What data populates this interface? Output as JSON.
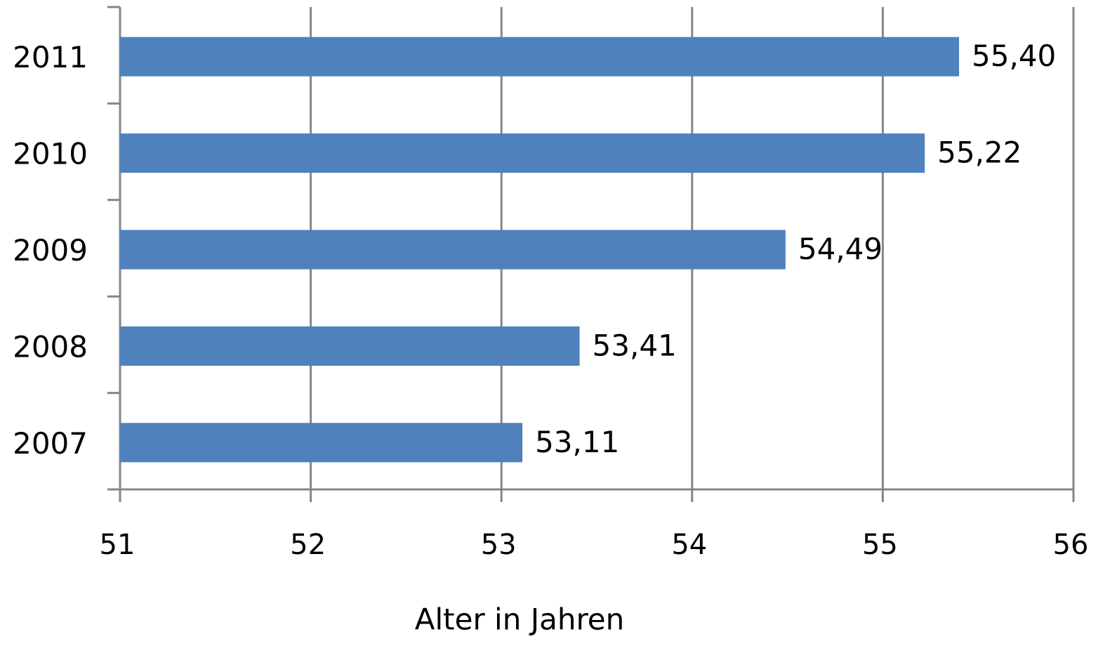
{
  "chart_data": {
    "type": "barh",
    "x_label": "Alter in Jahren",
    "categories": [
      "2011",
      "2010",
      "2009",
      "2008",
      "2007"
    ],
    "values": [
      55.4,
      55.22,
      54.49,
      53.41,
      53.11
    ],
    "value_labels": [
      "55,40",
      "55,22",
      "54,49",
      "53,41",
      "53,11"
    ],
    "color": "#4f81bd",
    "xlim": [
      51,
      56
    ],
    "xticks": [
      51,
      52,
      53,
      54,
      55,
      56
    ],
    "grid": true
  }
}
